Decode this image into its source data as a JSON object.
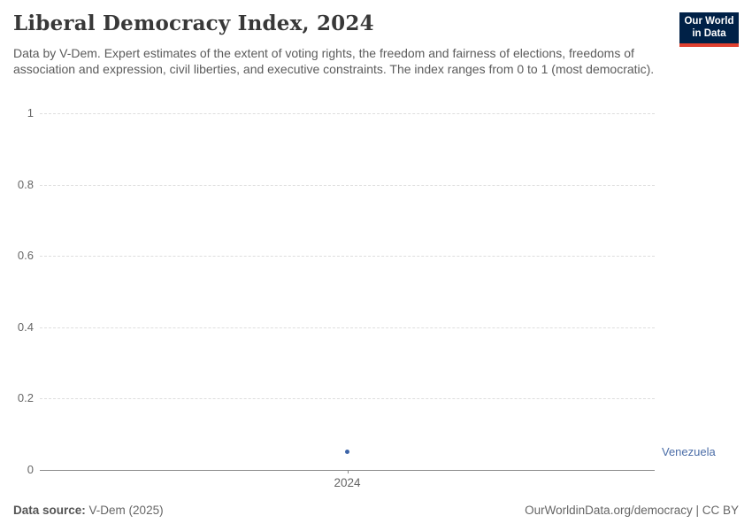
{
  "header": {
    "title": "Liberal Democracy Index, 2024",
    "subtitle": "Data by V-Dem. Expert estimates of the extent of voting rights, the freedom and fairness of elections, freedoms of association and expression, civil liberties, and executive constraints. The index ranges from 0 to 1 (most democratic).",
    "logo": {
      "line1": "Our World",
      "line2": "in Data",
      "bg_color": "#002147",
      "accent_color": "#e0402f"
    }
  },
  "chart_data": {
    "type": "scatter",
    "title": "Liberal Democracy Index, 2024",
    "x": [
      2024
    ],
    "xtick_labels": [
      "2024"
    ],
    "series": [
      {
        "name": "Venezuela",
        "values": [
          0.05
        ],
        "color": "#3c64a8"
      }
    ],
    "entity_label": "Venezuela",
    "entity_label_color": "#4c6ea8",
    "xlabel": "",
    "ylabel": "",
    "ylim": [
      0,
      1
    ],
    "yticks": [
      0,
      0.2,
      0.4,
      0.6,
      0.8,
      1
    ],
    "ytick_labels": [
      "0",
      "0.2",
      "0.4",
      "0.6",
      "0.8",
      "1"
    ],
    "grid": "horizontal dashed",
    "grid_color": "#dedede",
    "axis_line_color": "#8b8b8b",
    "legend_position": "right of point"
  },
  "footer": {
    "source_label": "Data source:",
    "source_value": "V-Dem (2025)",
    "credit": "OurWorldinData.org/democracy | CC BY"
  }
}
